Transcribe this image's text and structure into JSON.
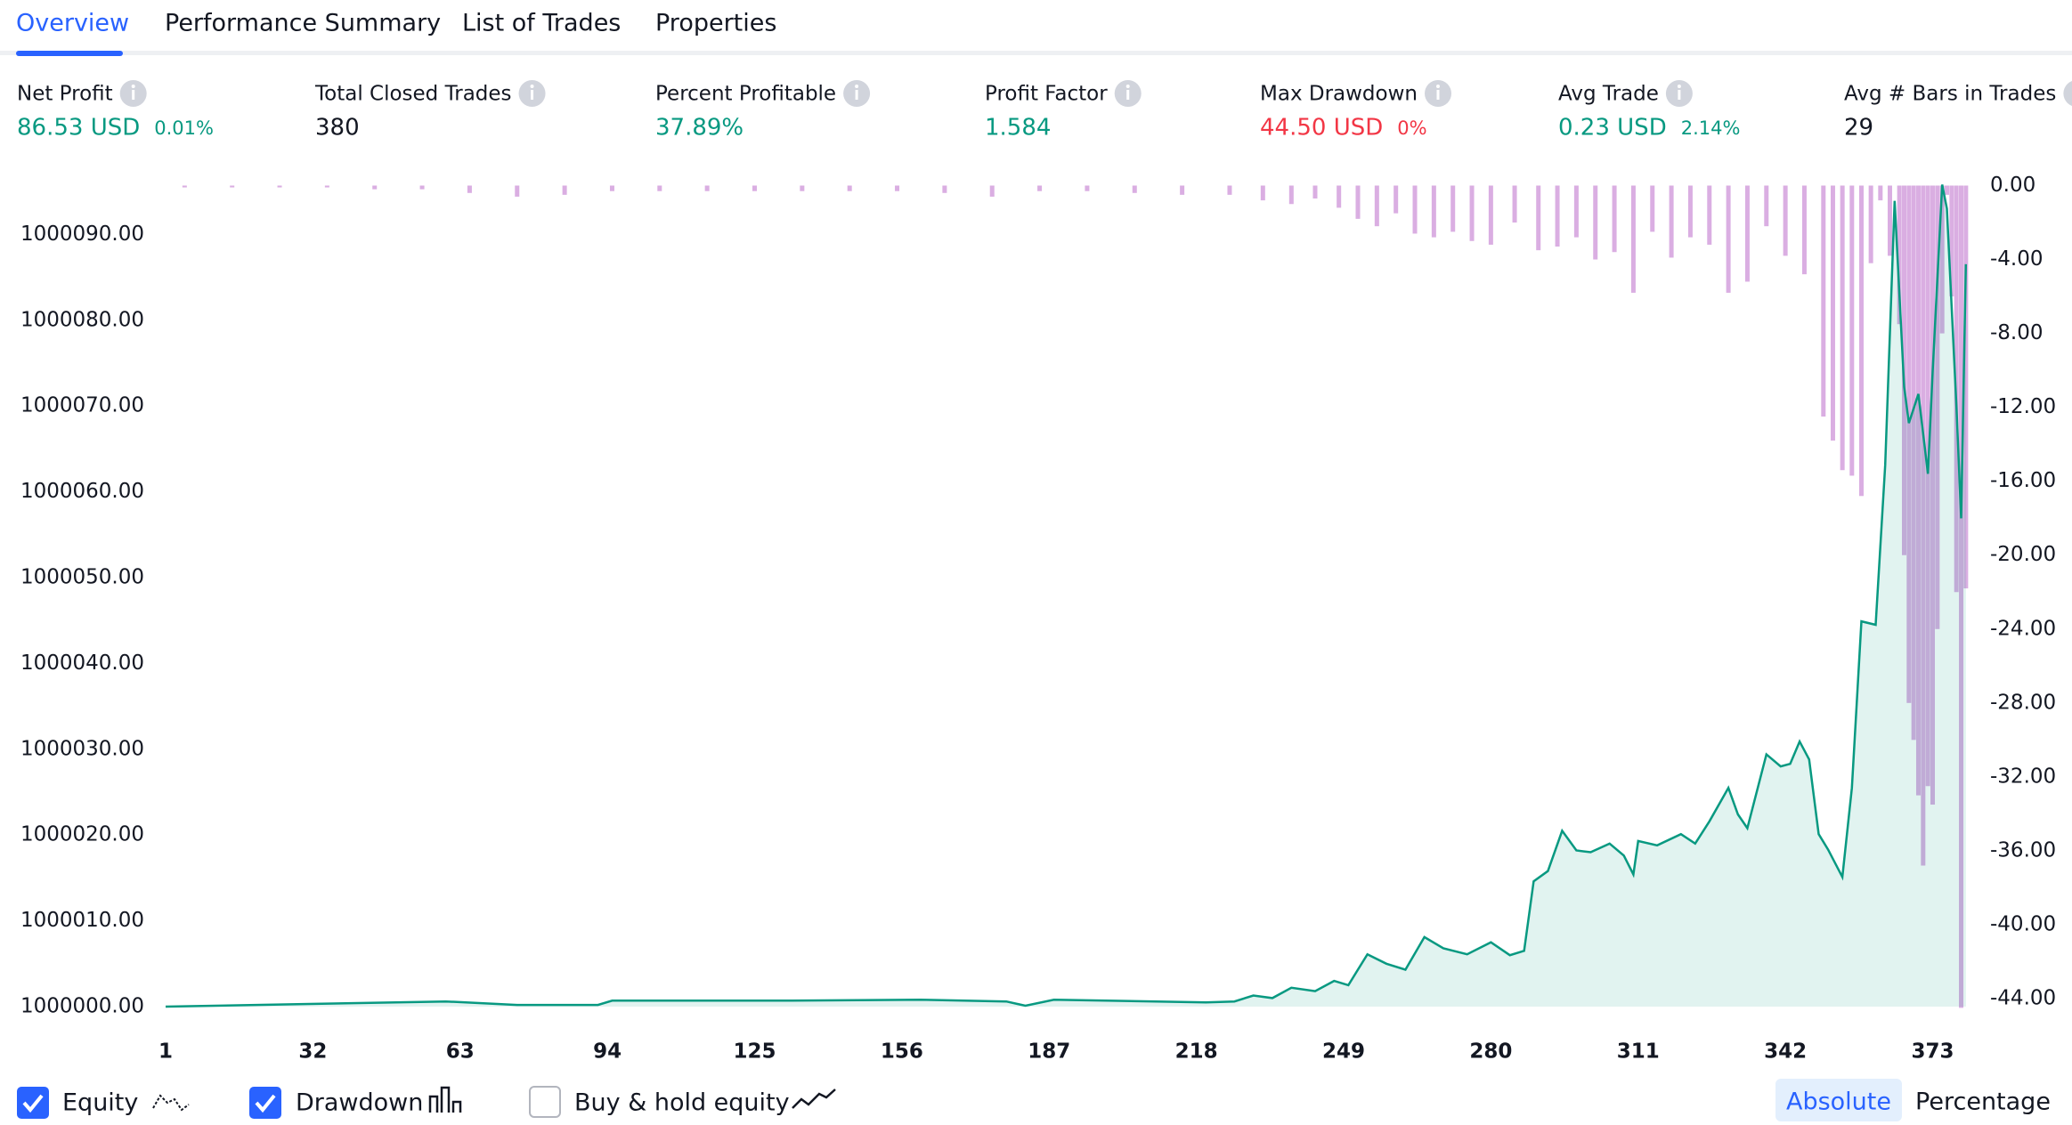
{
  "tabs": [
    "Overview",
    "Performance Summary",
    "List of Trades",
    "Properties"
  ],
  "metrics": [
    {
      "label": "Net Profit",
      "value": "86.53 USD",
      "change": "0.01%",
      "color": "#089981"
    },
    {
      "label": "Total Closed Trades",
      "value": "380",
      "color": "#131722"
    },
    {
      "label": "Percent Profitable",
      "value": "37.89%",
      "color": "#089981"
    },
    {
      "label": "Profit Factor",
      "value": "1.584",
      "color": "#089981"
    },
    {
      "label": "Max Drawdown",
      "value": "44.50 USD",
      "change": "0%",
      "color": "#f23645"
    },
    {
      "label": "Avg Trade",
      "value": "0.23 USD",
      "change": "2.14%",
      "color": "#089981"
    },
    {
      "label": "Avg # Bars in Trades",
      "value": "29",
      "color": "#131722"
    }
  ],
  "chart_data": {
    "type": "line",
    "xlim": [
      1,
      373
    ],
    "xticks": [
      1,
      32,
      63,
      94,
      125,
      156,
      187,
      218,
      249,
      280,
      311,
      342,
      373
    ],
    "ylim": [
      1000000,
      1000096
    ],
    "yticks": [
      {
        "value": 1000000,
        "label": "1000000.00"
      },
      {
        "value": 1000010,
        "label": "1000010.00"
      },
      {
        "value": 1000020,
        "label": "1000020.00"
      },
      {
        "value": 1000030,
        "label": "1000030.00"
      },
      {
        "value": 1000040,
        "label": "1000040.00"
      },
      {
        "value": 1000050,
        "label": "1000050.00"
      },
      {
        "value": 1000060,
        "label": "1000060.00"
      },
      {
        "value": 1000070,
        "label": "1000070.00"
      },
      {
        "value": 1000080,
        "label": "1000080.00"
      },
      {
        "value": 1000090,
        "label": "1000090.00"
      }
    ],
    "y2lim": [
      -44,
      0
    ],
    "y2ticks": [
      {
        "value": 0,
        "label": "0.00"
      },
      {
        "value": -4,
        "label": "-4.00"
      },
      {
        "value": -8,
        "label": "-8.00"
      },
      {
        "value": -12,
        "label": "-12.00"
      },
      {
        "value": -16,
        "label": "-16.00"
      },
      {
        "value": -20,
        "label": "-20.00"
      },
      {
        "value": -24,
        "label": "-24.00"
      },
      {
        "value": -28,
        "label": "-28.00"
      },
      {
        "value": -32,
        "label": "-32.00"
      },
      {
        "value": -36,
        "label": "-36.00"
      },
      {
        "value": -40,
        "label": "-40.00"
      },
      {
        "value": -44,
        "label": "-44.00"
      }
    ],
    "series": [
      {
        "name": "Equity",
        "color": "#089981",
        "x": [
          1,
          30,
          60,
          75,
          92,
          95,
          130,
          160,
          178,
          182,
          188,
          220,
          226,
          230,
          234,
          238,
          243,
          247,
          250,
          254,
          258,
          262,
          266,
          270,
          275,
          280,
          284,
          287,
          289,
          292,
          295,
          298,
          301,
          305,
          308,
          310,
          311,
          315,
          320,
          323,
          326,
          330,
          332,
          334,
          338,
          341,
          343,
          345,
          347,
          349,
          351,
          354,
          356,
          358,
          361,
          363,
          365,
          367,
          368,
          370,
          372,
          373,
          375,
          376,
          378,
          379,
          380
        ],
        "values": [
          1000000,
          1000000.3,
          1000000.6,
          1000000.2,
          1000000.2,
          1000000.7,
          1000000.7,
          1000000.8,
          1000000.6,
          1000000.1,
          1000000.8,
          1000000.5,
          1000000.6,
          1000001.3,
          1000001,
          1000002.2,
          1000001.8,
          1000003,
          1000002.5,
          1000006.1,
          1000005,
          1000004.3,
          1000008.1,
          1000006.8,
          1000006.1,
          1000007.5,
          1000006,
          1000006.5,
          1000014.6,
          1000015.8,
          1000020.5,
          1000018.2,
          1000018,
          1000019,
          1000017.6,
          1000015.4,
          1000019.3,
          1000018.8,
          1000020.1,
          1000019,
          1000021.6,
          1000025.5,
          1000022.4,
          1000020.8,
          1000029.4,
          1000028,
          1000028.3,
          1000030.9,
          1000028.8,
          1000020.1,
          1000018.3,
          1000015.1,
          1000025.5,
          1000044.9,
          1000044.5,
          1000063.1,
          1000093.9,
          1000072.2,
          1000068,
          1000071.4,
          1000062.1,
          1000074,
          1000095.8,
          1000093,
          1000070,
          1000056.9,
          1000086.53
        ]
      },
      {
        "name": "Drawdown",
        "color": "#ce93d8",
        "axis": "y2",
        "x": [
          5,
          15,
          25,
          35,
          45,
          55,
          65,
          75,
          85,
          95,
          105,
          115,
          125,
          135,
          145,
          155,
          165,
          175,
          185,
          195,
          205,
          215,
          225,
          232,
          238,
          243,
          248,
          252,
          256,
          260,
          264,
          268,
          272,
          276,
          280,
          285,
          290,
          294,
          298,
          302,
          306,
          310,
          314,
          318,
          322,
          326,
          330,
          334,
          338,
          342,
          346,
          350,
          352,
          354,
          356,
          358,
          360,
          362,
          364,
          366,
          367,
          368,
          369,
          370,
          371,
          372,
          373,
          374,
          375,
          376,
          377,
          378,
          379,
          380
        ],
        "values": [
          -0.1,
          -0.1,
          -0.1,
          -0.1,
          -0.2,
          -0.2,
          -0.4,
          -0.6,
          -0.5,
          -0.3,
          -0.3,
          -0.3,
          -0.3,
          -0.3,
          -0.3,
          -0.3,
          -0.4,
          -0.6,
          -0.3,
          -0.3,
          -0.4,
          -0.5,
          -0.5,
          -0.8,
          -1,
          -0.7,
          -1.2,
          -1.8,
          -2.2,
          -1.5,
          -2.6,
          -2.8,
          -2.5,
          -3,
          -3.2,
          -2,
          -3.5,
          -3.3,
          -2.8,
          -4,
          -3.6,
          -5.8,
          -2.5,
          -3.9,
          -2.8,
          -3.2,
          -5.8,
          -5.2,
          -2.2,
          -3.8,
          -4.8,
          -12.5,
          -13.8,
          -15.4,
          -15.7,
          -16.8,
          -4.2,
          -0.8,
          -3.8,
          -7.5,
          -20,
          -28,
          -30,
          -33,
          -36.8,
          -32.5,
          -33.5,
          -24,
          -8,
          -0.5,
          -6,
          -22,
          -44.5,
          -21.8
        ]
      }
    ]
  },
  "controls": {
    "buy_hold": "Buy & hold equity",
    "modes": [
      "Absolute",
      "Percentage"
    ]
  }
}
